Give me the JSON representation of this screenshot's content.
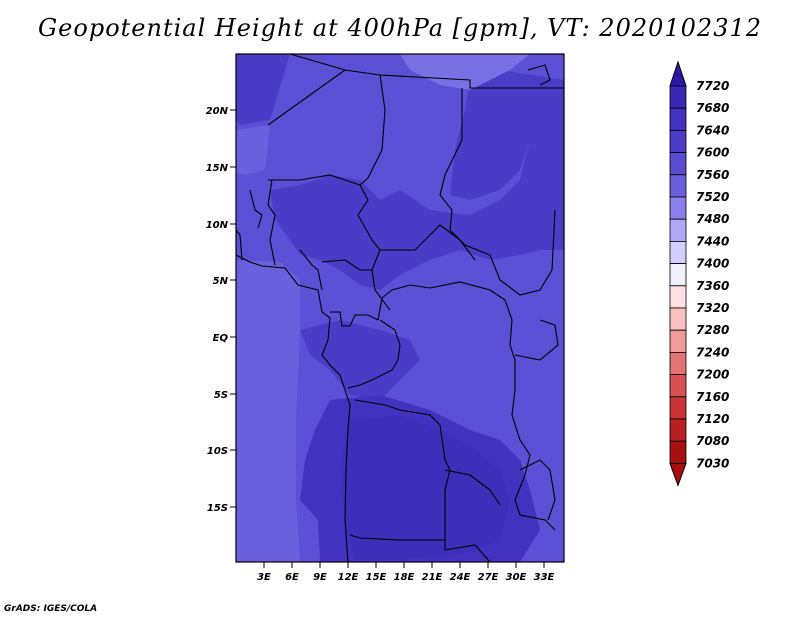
{
  "title": "Geopotential Height at 400hPa [gpm], VT: 2020102312",
  "credit": "GrADS: IGES/COLA",
  "map": {
    "lat_labels": [
      "20N",
      "15N",
      "10N",
      "5N",
      "EQ",
      "5S",
      "10S",
      "15S"
    ],
    "lon_labels": [
      "3E",
      "6E",
      "9E",
      "12E",
      "15E",
      "18E",
      "21E",
      "24E",
      "27E",
      "30E",
      "33E"
    ]
  },
  "colorbar": {
    "levels": [
      "7720",
      "7680",
      "7640",
      "7600",
      "7560",
      "7520",
      "7480",
      "7440",
      "7400",
      "7360",
      "7320",
      "7280",
      "7240",
      "7200",
      "7160",
      "7120",
      "7080",
      "7030"
    ],
    "colors": [
      "#2c18a8",
      "#3a28b4",
      "#4232c0",
      "#4a3ec8",
      "#5a4ed0",
      "#6a60dc",
      "#8a80ec",
      "#b0a8f4",
      "#d2ceff",
      "#f0f0ff",
      "#ffe0e0",
      "#f8c0c0",
      "#f09a9a",
      "#e47474",
      "#d85050",
      "#c83434",
      "#b82020",
      "#a81010"
    ]
  },
  "colors": {
    "field_low": "#5a4ed4",
    "field_mid": "#4a3cc4",
    "field_high": "#7a6ee4",
    "border": "#000000"
  }
}
